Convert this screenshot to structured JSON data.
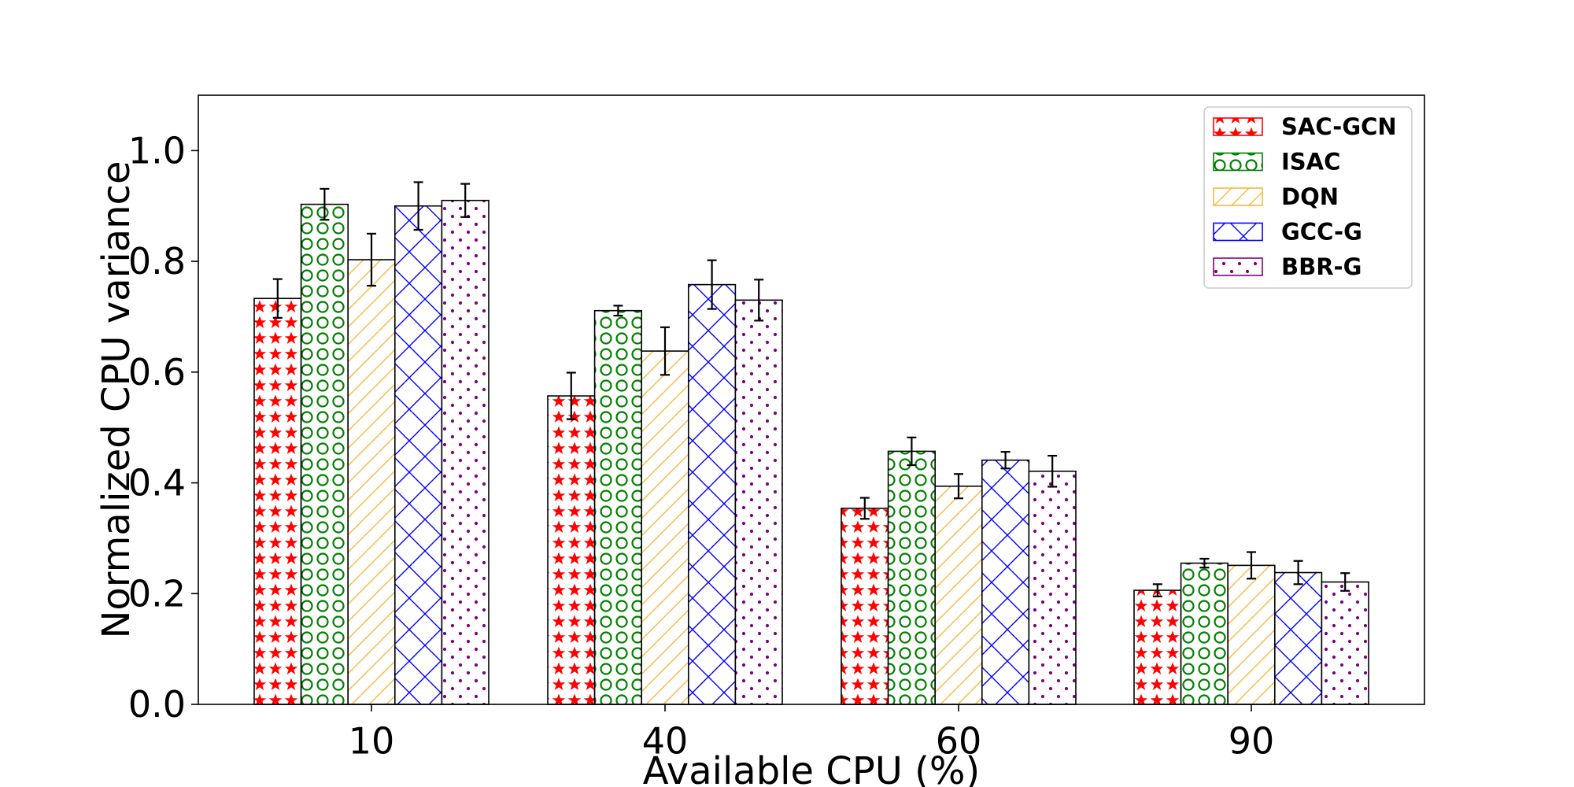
{
  "chart_data": {
    "type": "bar",
    "title": "",
    "xlabel": "Available CPU (%)",
    "ylabel": "Normalized CPU variance",
    "categories": [
      "10",
      "40",
      "60",
      "90"
    ],
    "ylim": [
      0,
      1.1
    ],
    "yticks": [
      "0.0",
      "0.2",
      "0.4",
      "0.6",
      "0.8",
      "1.0"
    ],
    "grid": false,
    "legend_position": "top-right",
    "series": [
      {
        "name": "SAC-GCN",
        "color": "#ff0000",
        "hatch": "stars",
        "values": [
          0.733,
          0.557,
          0.354,
          0.206
        ],
        "errors": [
          0.035,
          0.042,
          0.019,
          0.011
        ]
      },
      {
        "name": "ISAC",
        "color": "#008000",
        "hatch": "circles",
        "values": [
          0.903,
          0.711,
          0.457,
          0.255
        ],
        "errors": [
          0.028,
          0.009,
          0.025,
          0.008
        ]
      },
      {
        "name": "DQN",
        "color": "#f4b942",
        "hatch": "diagonal",
        "values": [
          0.803,
          0.638,
          0.394,
          0.251
        ],
        "errors": [
          0.047,
          0.043,
          0.022,
          0.024
        ]
      },
      {
        "name": "GCC-G",
        "color": "#0000ff",
        "hatch": "crosshatch",
        "values": [
          0.9,
          0.758,
          0.441,
          0.238
        ],
        "errors": [
          0.043,
          0.044,
          0.015,
          0.021
        ]
      },
      {
        "name": "BBR-G",
        "color": "#800080",
        "hatch": "dots",
        "values": [
          0.91,
          0.73,
          0.421,
          0.221
        ],
        "errors": [
          0.03,
          0.037,
          0.028,
          0.016
        ]
      }
    ]
  }
}
